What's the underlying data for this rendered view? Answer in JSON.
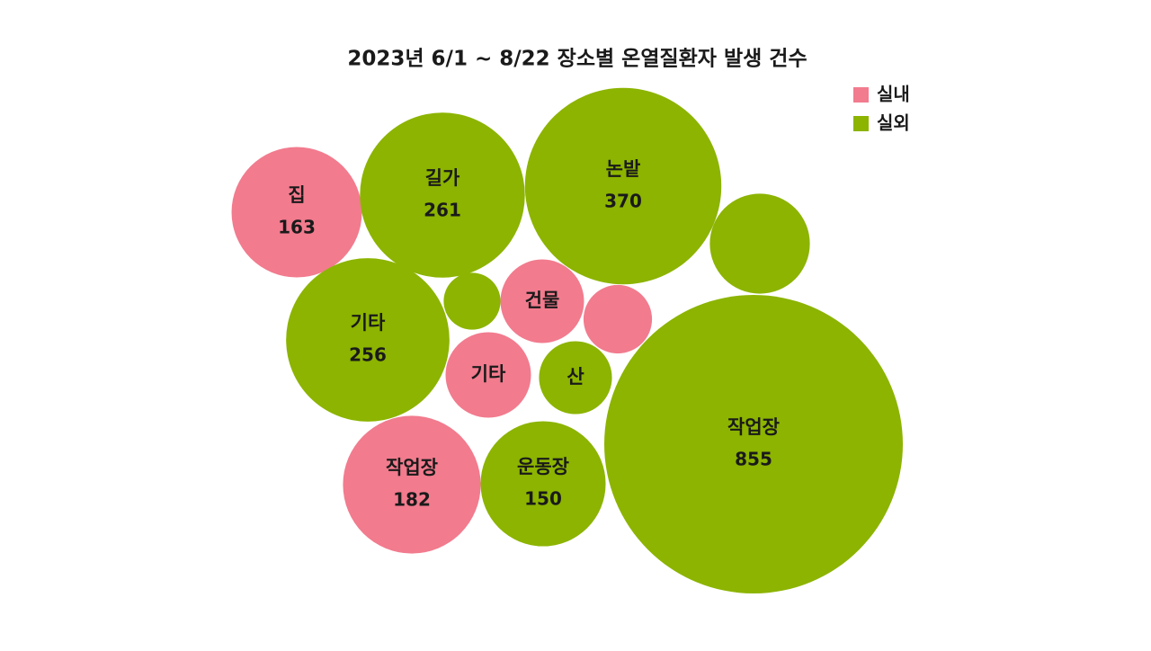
{
  "chart_data": {
    "type": "bubble",
    "title": "2023년 6/1 ~ 8/22 장소별 온열질환자 발생 건수",
    "series": [
      {
        "name": "실내",
        "color": "#f27b8e",
        "labels": [
          "집",
          "작업장",
          "건물",
          "기타",
          null
        ],
        "values": [
          163,
          182,
          67,
          70,
          45
        ],
        "show_value": [
          true,
          true,
          false,
          false,
          false
        ]
      },
      {
        "name": "실외",
        "color": "#8cb400",
        "labels": [
          "작업장",
          "논밭",
          "길가",
          "기타",
          "운동장",
          "산",
          null,
          null
        ],
        "values": [
          855,
          370,
          261,
          256,
          150,
          51,
          96,
          31
        ],
        "show_value": [
          true,
          true,
          true,
          true,
          true,
          false,
          false,
          false
        ]
      }
    ],
    "legend": "top-right"
  }
}
